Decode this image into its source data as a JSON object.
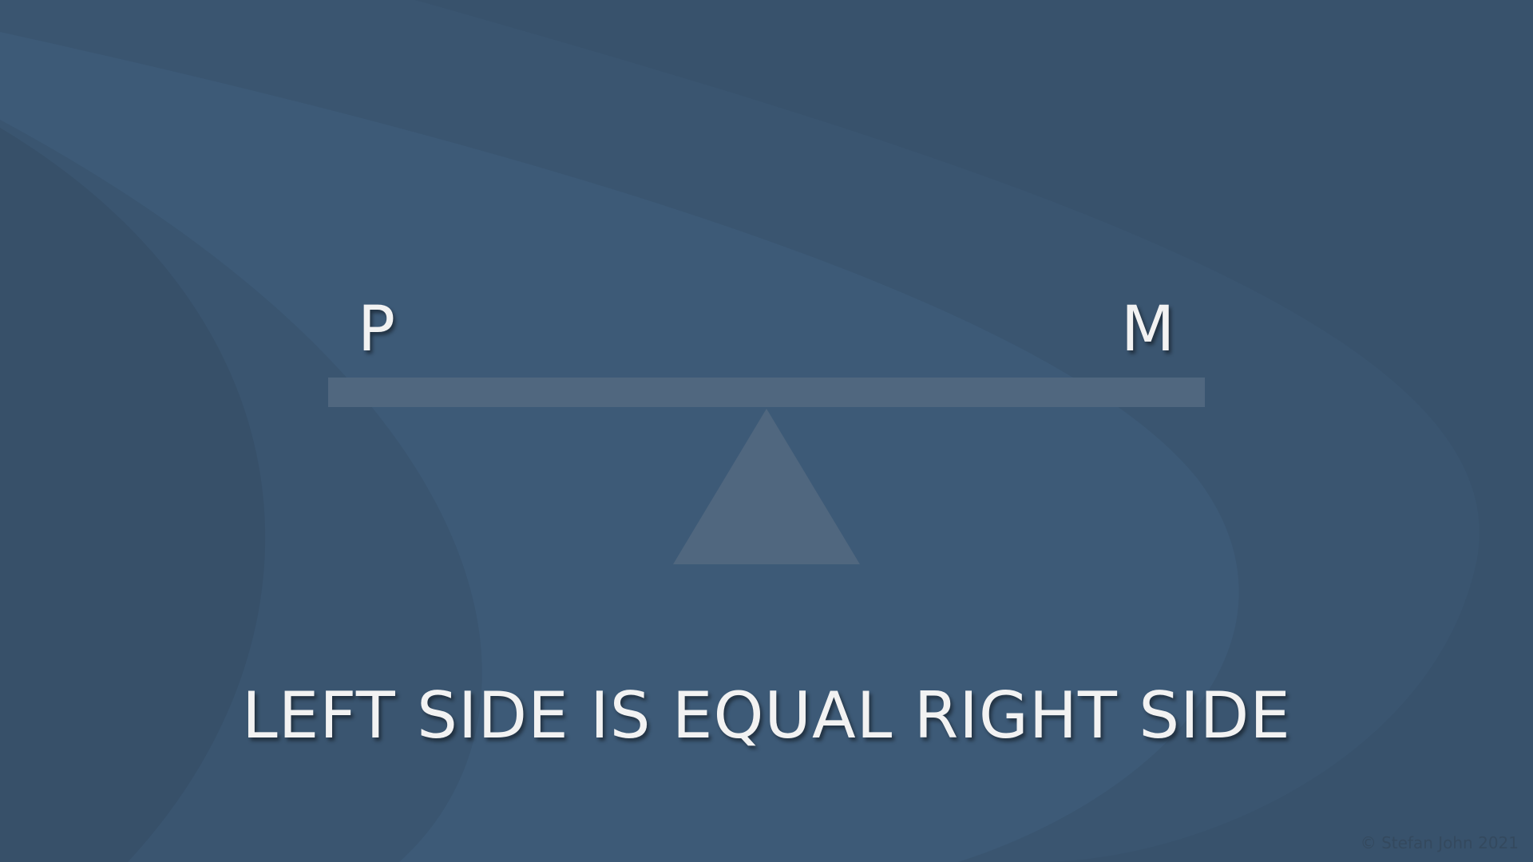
{
  "diagram": {
    "left_label": "P",
    "right_label": "M",
    "caption": "LEFT SIDE IS EQUAL RIGHT SIDE",
    "balance_state": "level"
  },
  "footer": {
    "copyright": "© Stefan John 2021"
  },
  "colors": {
    "background": "#3b5772",
    "background_dark": "#37506a",
    "background_light": "#3d5a77",
    "beam_and_fulcrum": "#50677f",
    "text": "#f2f2f2"
  }
}
